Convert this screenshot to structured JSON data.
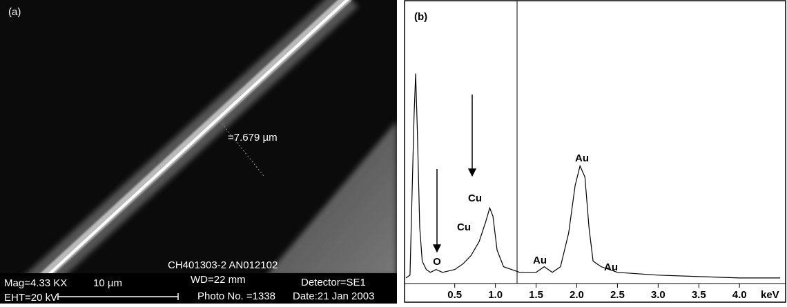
{
  "panel_a": {
    "label": "(a)",
    "measurement": "=7.679 µm",
    "mag": "Mag=4.33 KX",
    "scale_bar": "10 µm",
    "eht": "EHT=20 kV",
    "sample_id": "CH401303-2  AN012102",
    "wd": "WD=22 mm",
    "photo": "Photo No. =1338",
    "detector": "Detector=SE1",
    "date": "Date:21 Jan 2003"
  },
  "chart_data": {
    "type": "line",
    "title": "(b)",
    "x_label": "keV",
    "color": "#000000",
    "x": [
      -0.1,
      -0.05,
      0.0,
      0.02,
      0.04,
      0.07,
      0.1,
      0.15,
      0.2,
      0.27,
      0.35,
      0.5,
      0.6,
      0.7,
      0.8,
      0.88,
      0.93,
      0.97,
      1.02,
      1.1,
      1.2,
      1.3,
      1.5,
      1.6,
      1.7,
      1.8,
      1.9,
      1.98,
      2.04,
      2.1,
      2.15,
      2.2,
      2.3,
      2.5,
      3.0,
      3.5,
      4.0,
      4.5
    ],
    "values": [
      2,
      3,
      60,
      75,
      55,
      20,
      8,
      5,
      4,
      5,
      4,
      5,
      7,
      10,
      15,
      22,
      27,
      24,
      12,
      6,
      5,
      4,
      4,
      6,
      4,
      6,
      18,
      35,
      42,
      38,
      20,
      8,
      6,
      4,
      3,
      2.5,
      2,
      2
    ],
    "annotations": [
      "O",
      "Cu",
      "Cu",
      "Au",
      "Au",
      "Au"
    ],
    "xlim": [
      -0.1,
      4.55
    ],
    "ylim": [
      0,
      100
    ],
    "xticks": [
      0.5,
      {
        "value": 1,
        "label": "1.0"
      },
      1.5,
      {
        "value": 2,
        "label": "2.0"
      },
      2.5,
      {
        "value": 3,
        "label": "3.0"
      },
      3.5,
      {
        "value": 4,
        "label": "4.0"
      }
    ]
  }
}
